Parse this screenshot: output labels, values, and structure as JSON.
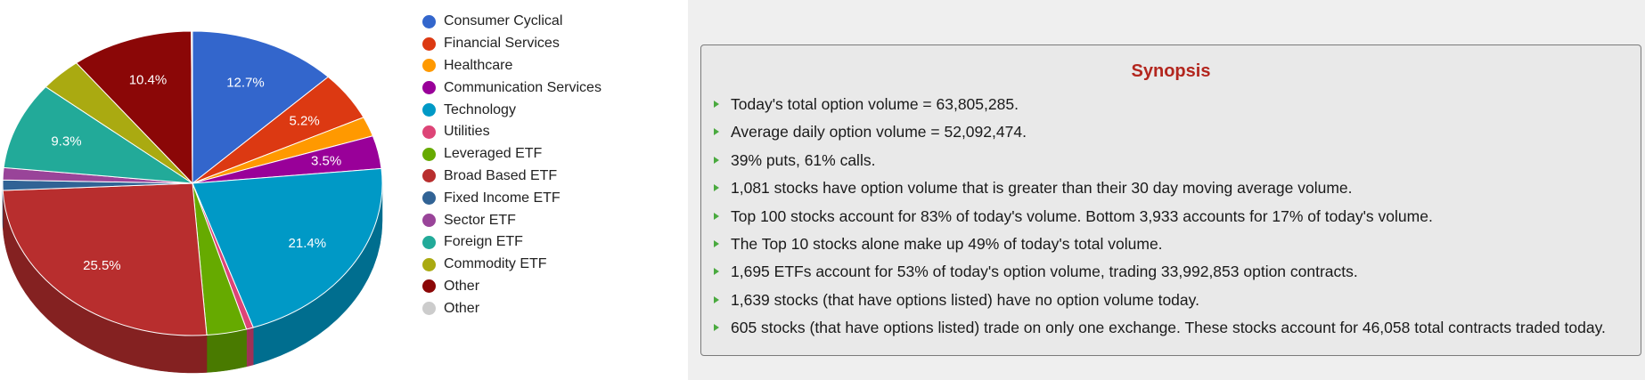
{
  "chart_data": {
    "type": "pie",
    "categories": [
      "Consumer Cyclical",
      "Financial Services",
      "Healthcare",
      "Communication Services",
      "Technology",
      "Utilities",
      "Leveraged ETF",
      "Broad Based ETF",
      "Fixed Income ETF",
      "Sector ETF",
      "Foreign ETF",
      "Commodity ETF",
      "Other",
      "Other"
    ],
    "values": [
      12.7,
      5.2,
      2.1,
      3.5,
      21.4,
      0.6,
      3.4,
      25.5,
      1.1,
      1.3,
      9.3,
      3.6,
      10.4,
      0.1
    ],
    "colors": [
      "#3366cc",
      "#dc3912",
      "#ff9900",
      "#990099",
      "#0099c6",
      "#dd4477",
      "#66aa00",
      "#b82e2e",
      "#316395",
      "#994499",
      "#22aa99",
      "#aaaa11",
      "#8b0707",
      "#cccccc"
    ],
    "data_labels": [
      {
        "index": 0,
        "text": "12.7%"
      },
      {
        "index": 1,
        "text": "5.2%"
      },
      {
        "index": 3,
        "text": "3.5%"
      },
      {
        "index": 4,
        "text": "21.4%"
      },
      {
        "index": 7,
        "text": "25.5%"
      },
      {
        "index": 10,
        "text": "9.3%"
      },
      {
        "index": 12,
        "text": "10.4%"
      }
    ],
    "legend_position": "right",
    "is_3d": true
  },
  "synopsis": {
    "title": "Synopsis",
    "items": [
      "Today's total option volume = 63,805,285.",
      "Average daily option volume = 52,092,474.",
      "39% puts, 61% calls.",
      "1,081 stocks have option volume that is greater than their 30 day moving average volume.",
      "Top 100 stocks account for 83% of today's volume. Bottom 3,933 accounts for 17% of today's volume.",
      "The Top 10 stocks alone make up 49% of today's total volume.",
      "1,695 ETFs account for 53% of today's option volume, trading 33,992,853 option contracts.",
      "1,639 stocks (that have options listed) have no option volume today.",
      "605 stocks (that have options listed) trade on only one exchange. These stocks account for 46,058 total contracts traded today."
    ]
  }
}
